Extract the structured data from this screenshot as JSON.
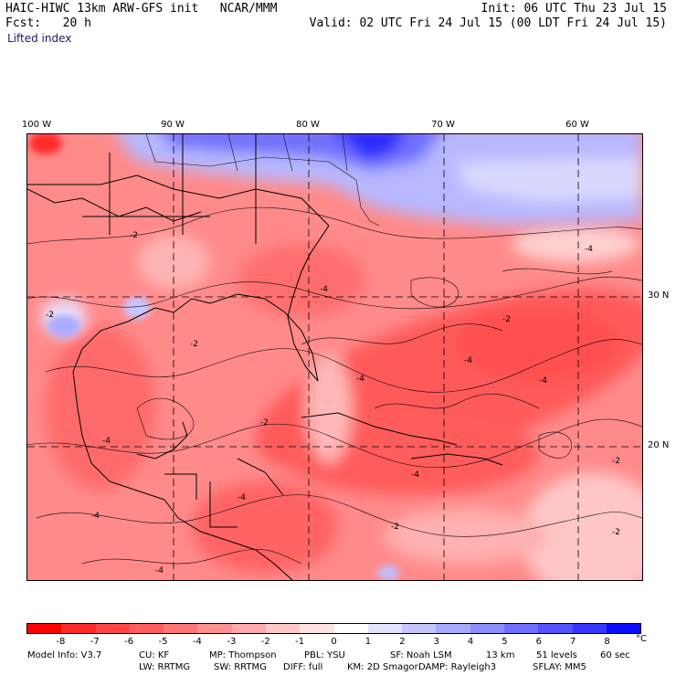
{
  "header": {
    "left_line1": "HAIC-HIWC 13km ARW-GFS init   NCAR/MMM",
    "left_line2": "Fcst:   20 h",
    "right_line1": "Init: 06 UTC Thu 23 Jul 15",
    "right_line2": "Valid: 02 UTC Fri 24 Jul 15 (00 LDT Fri 24 Jul 15)",
    "field": "Lifted index"
  },
  "map": {
    "longitude_labels": [
      "100 W",
      "90 W",
      "80 W",
      "70 W",
      "60 W"
    ],
    "latitude_labels": [
      "30 N",
      "20 N"
    ],
    "contour_labels": [
      "-2",
      "-4",
      "-2",
      "-4",
      "-2",
      "-4",
      "-2",
      "-4",
      "-4",
      "-4",
      "-2",
      "-4",
      "-2",
      "-4",
      "-2",
      "-4",
      "-2",
      "-4"
    ]
  },
  "colorbar": {
    "colors": [
      "#ff0000",
      "#ff2a2a",
      "#ff4545",
      "#ff5d5d",
      "#ff7575",
      "#ff9090",
      "#ffabab",
      "#ffc8c8",
      "#ffe2e2",
      "#ffffff",
      "#e2e2ff",
      "#c5c5ff",
      "#a8a8ff",
      "#8c8cff",
      "#6f6fff",
      "#5252ff",
      "#3636ff",
      "#0a0aff"
    ],
    "ticks": [
      "-8",
      "-7",
      "-6",
      "-5",
      "-4",
      "-3",
      "-2",
      "-1",
      "0",
      "1",
      "2",
      "3",
      "4",
      "5",
      "6",
      "7",
      "8"
    ],
    "unit": "°C"
  },
  "footer": {
    "row1": [
      "Model Info: V3.7",
      "CU: KF",
      "MP: Thompson",
      "PBL: YSU",
      "SF: Noah LSM",
      "13 km",
      "51 levels",
      "60 sec"
    ],
    "row2": [
      "LW: RRTMG",
      "SW: RRTMG",
      "DIFF: full",
      "KM: 2D Smagor",
      "DAMP: Rayleigh3",
      "SFLAY: MM5"
    ]
  }
}
